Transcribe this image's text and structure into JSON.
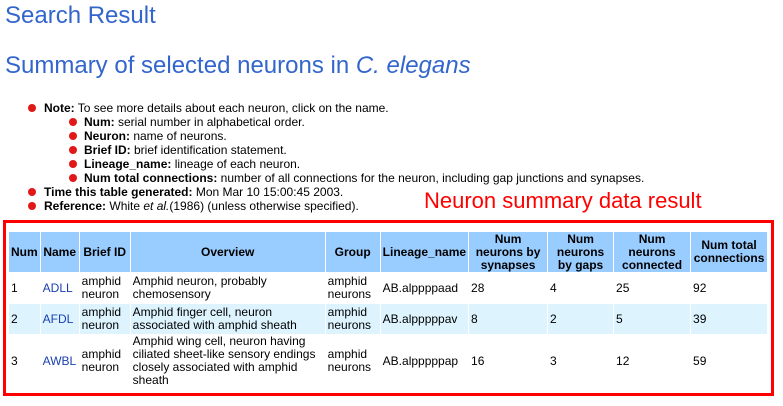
{
  "title": "Search Result",
  "subtitle_prefix": "Summary of selected neurons in ",
  "subtitle_species": "C. elegans",
  "notes": {
    "note_label": "Note:",
    "note_text": " To see more details about each neuron, click on the name.",
    "sub_items": [
      {
        "label": "Num:",
        "text": " serial number in alphabetical order."
      },
      {
        "label": "Neuron:",
        "text": " name of neurons."
      },
      {
        "label": "Brief ID:",
        "text": " brief identification statement."
      },
      {
        "label": "Lineage_name:",
        "text": " lineage of each neuron."
      },
      {
        "label": "Num total connections:",
        "text": " number of all connections for the neuron, including gap junctions and synapses."
      }
    ],
    "time_label": "Time this table generated:",
    "time_text": " Mon Mar 10 15:00:45 2003.",
    "ref_label": "Reference:",
    "ref_text_a": " White ",
    "ref_text_italic": "et al.",
    "ref_text_b": "(1986) (unless otherwise specified)."
  },
  "annotation": "Neuron summary data result",
  "table": {
    "headers": [
      "Num",
      "Name",
      "Brief ID",
      "Overview",
      "Group",
      "Lineage_name",
      "Num neurons by synapses",
      "Num neurons by gaps",
      "Num neurons connected",
      "Num total connections"
    ],
    "rows": [
      {
        "num": "1",
        "name": "ADLL",
        "brief_id": "amphid neuron",
        "overview": "Amphid neuron, probably chemosensory",
        "group": "amphid neurons",
        "lineage": "AB.alppppaad",
        "synapses": "28",
        "gaps": "4",
        "connected": "25",
        "total": "92"
      },
      {
        "num": "2",
        "name": "AFDL",
        "brief_id": "amphid neuron",
        "overview": "Amphid finger cell, neuron associated with amphid sheath",
        "group": "amphid neurons",
        "lineage": "AB.alpppppav",
        "synapses": "8",
        "gaps": "2",
        "connected": "5",
        "total": "39"
      },
      {
        "num": "3",
        "name": "AWBL",
        "brief_id": "amphid neuron",
        "overview": "Amphid wing cell, neuron having ciliated sheet-like sensory endings closely associated with amphid sheath",
        "group": "amphid neurons",
        "lineage": "AB.alpppppap",
        "synapses": "16",
        "gaps": "3",
        "connected": "12",
        "total": "59"
      }
    ]
  },
  "colors": {
    "heading": "#3366cc",
    "bullet": "#e01818",
    "annotation": "#ff0000",
    "header_bg": "#99ccff",
    "alt_row_bg": "#ddf4ff",
    "link": "#1a3fb0"
  }
}
